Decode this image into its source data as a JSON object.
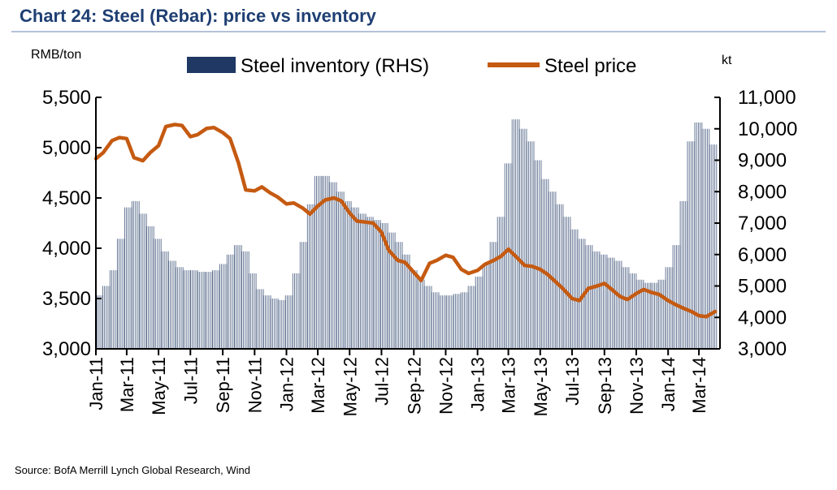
{
  "colors": {
    "title": "#1f3f73",
    "inventory_bars": "#1f3864",
    "price_line": "#c55a11",
    "axis": "#000000"
  },
  "chart_data": {
    "type": "bar+line",
    "title": "Chart 24: Steel (Rebar): price vs inventory",
    "ylabel_left": "RMB/ton",
    "ylabel_right": "kt",
    "ylim_left": [
      3000,
      5500
    ],
    "ylim_right": [
      3000,
      11000
    ],
    "yticks_left": [
      "3,000",
      "3,500",
      "4,000",
      "4,500",
      "5,000",
      "5,500"
    ],
    "yticks_right": [
      "3,000",
      "4,000",
      "5,000",
      "6,000",
      "7,000",
      "8,000",
      "9,000",
      "10,000",
      "11,000"
    ],
    "x_tick_labels": [
      "Jan-11",
      "Mar-11",
      "May-11",
      "Jul-11",
      "Sep-11",
      "Nov-11",
      "Jan-12",
      "Mar-12",
      "May-12",
      "Jul-12",
      "Sep-12",
      "Nov-12",
      "Jan-13",
      "Mar-13",
      "May-13",
      "Jul-13",
      "Sep-13",
      "Nov-13",
      "Jan-14",
      "Mar-14"
    ],
    "x_start": "Jan-11",
    "x_end": "Apr-14",
    "legend_position": "top-center",
    "grid": false,
    "series": [
      {
        "name": "Steel inventory (RHS)",
        "type": "bar",
        "axis": "right",
        "points": [
          [
            "2011-01-07",
            4700
          ],
          [
            "2011-01-21",
            5000
          ],
          [
            "2011-02-04",
            5500
          ],
          [
            "2011-02-18",
            6500
          ],
          [
            "2011-03-04",
            7500
          ],
          [
            "2011-03-18",
            7700
          ],
          [
            "2011-04-01",
            7300
          ],
          [
            "2011-04-15",
            6900
          ],
          [
            "2011-04-29",
            6500
          ],
          [
            "2011-05-13",
            6100
          ],
          [
            "2011-05-27",
            5800
          ],
          [
            "2011-06-10",
            5600
          ],
          [
            "2011-06-24",
            5500
          ],
          [
            "2011-07-08",
            5500
          ],
          [
            "2011-07-22",
            5450
          ],
          [
            "2011-08-05",
            5450
          ],
          [
            "2011-08-19",
            5500
          ],
          [
            "2011-09-02",
            5700
          ],
          [
            "2011-09-16",
            6000
          ],
          [
            "2011-09-30",
            6300
          ],
          [
            "2011-10-14",
            6100
          ],
          [
            "2011-10-28",
            5400
          ],
          [
            "2011-11-11",
            4900
          ],
          [
            "2011-11-25",
            4700
          ],
          [
            "2011-12-09",
            4600
          ],
          [
            "2011-12-23",
            4550
          ],
          [
            "2012-01-06",
            4700
          ],
          [
            "2012-01-20",
            5400
          ],
          [
            "2012-02-03",
            6400
          ],
          [
            "2012-02-17",
            7600
          ],
          [
            "2012-03-02",
            8500
          ],
          [
            "2012-03-16",
            8500
          ],
          [
            "2012-03-30",
            8300
          ],
          [
            "2012-04-13",
            8000
          ],
          [
            "2012-04-27",
            7700
          ],
          [
            "2012-05-11",
            7500
          ],
          [
            "2012-05-25",
            7300
          ],
          [
            "2012-06-08",
            7200
          ],
          [
            "2012-06-22",
            7100
          ],
          [
            "2012-07-06",
            7000
          ],
          [
            "2012-07-20",
            6700
          ],
          [
            "2012-08-03",
            6400
          ],
          [
            "2012-08-17",
            6000
          ],
          [
            "2012-08-31",
            5500
          ],
          [
            "2012-09-14",
            5200
          ],
          [
            "2012-09-28",
            5000
          ],
          [
            "2012-10-12",
            4800
          ],
          [
            "2012-10-26",
            4700
          ],
          [
            "2012-11-09",
            4700
          ],
          [
            "2012-11-23",
            4750
          ],
          [
            "2012-12-07",
            4800
          ],
          [
            "2012-12-21",
            5000
          ],
          [
            "2013-01-04",
            5300
          ],
          [
            "2013-01-18",
            5700
          ],
          [
            "2013-02-01",
            6400
          ],
          [
            "2013-02-15",
            7200
          ],
          [
            "2013-03-01",
            8900
          ],
          [
            "2013-03-15",
            10300
          ],
          [
            "2013-03-29",
            10000
          ],
          [
            "2013-04-12",
            9600
          ],
          [
            "2013-04-26",
            9000
          ],
          [
            "2013-05-10",
            8400
          ],
          [
            "2013-05-24",
            8000
          ],
          [
            "2013-06-07",
            7600
          ],
          [
            "2013-06-21",
            7200
          ],
          [
            "2013-07-05",
            6800
          ],
          [
            "2013-07-19",
            6500
          ],
          [
            "2013-08-02",
            6300
          ],
          [
            "2013-08-16",
            6100
          ],
          [
            "2013-08-30",
            6000
          ],
          [
            "2013-09-13",
            5900
          ],
          [
            "2013-09-27",
            5800
          ],
          [
            "2013-10-11",
            5600
          ],
          [
            "2013-10-25",
            5400
          ],
          [
            "2013-11-08",
            5200
          ],
          [
            "2013-11-22",
            5100
          ],
          [
            "2013-12-06",
            5100
          ],
          [
            "2013-12-20",
            5200
          ],
          [
            "2014-01-03",
            5600
          ],
          [
            "2014-01-17",
            6300
          ],
          [
            "2014-01-31",
            7700
          ],
          [
            "2014-02-14",
            9600
          ],
          [
            "2014-02-28",
            10200
          ],
          [
            "2014-03-14",
            10000
          ],
          [
            "2014-03-28",
            9500
          ]
        ]
      },
      {
        "name": "Steel price",
        "type": "line",
        "axis": "left",
        "points": [
          [
            "2011-01-01",
            4890
          ],
          [
            "2011-01-15",
            4950
          ],
          [
            "2011-02-01",
            5070
          ],
          [
            "2011-02-15",
            5100
          ],
          [
            "2011-03-01",
            5090
          ],
          [
            "2011-03-15",
            4900
          ],
          [
            "2011-04-01",
            4870
          ],
          [
            "2011-04-15",
            4950
          ],
          [
            "2011-05-01",
            5020
          ],
          [
            "2011-05-15",
            5210
          ],
          [
            "2011-06-01",
            5230
          ],
          [
            "2011-06-15",
            5220
          ],
          [
            "2011-07-01",
            5110
          ],
          [
            "2011-07-15",
            5130
          ],
          [
            "2011-08-01",
            5190
          ],
          [
            "2011-08-15",
            5200
          ],
          [
            "2011-09-01",
            5150
          ],
          [
            "2011-09-15",
            5090
          ],
          [
            "2011-10-01",
            4850
          ],
          [
            "2011-10-15",
            4580
          ],
          [
            "2011-11-01",
            4570
          ],
          [
            "2011-11-15",
            4610
          ],
          [
            "2011-12-01",
            4550
          ],
          [
            "2011-12-15",
            4510
          ],
          [
            "2012-01-01",
            4440
          ],
          [
            "2012-01-15",
            4450
          ],
          [
            "2012-02-01",
            4400
          ],
          [
            "2012-02-15",
            4340
          ],
          [
            "2012-03-01",
            4420
          ],
          [
            "2012-03-15",
            4480
          ],
          [
            "2012-04-01",
            4500
          ],
          [
            "2012-04-15",
            4470
          ],
          [
            "2012-05-01",
            4350
          ],
          [
            "2012-05-15",
            4270
          ],
          [
            "2012-06-01",
            4260
          ],
          [
            "2012-06-15",
            4250
          ],
          [
            "2012-07-01",
            4160
          ],
          [
            "2012-07-15",
            3980
          ],
          [
            "2012-08-01",
            3880
          ],
          [
            "2012-08-15",
            3860
          ],
          [
            "2012-09-01",
            3760
          ],
          [
            "2012-09-15",
            3680
          ],
          [
            "2012-10-01",
            3850
          ],
          [
            "2012-10-15",
            3880
          ],
          [
            "2012-11-01",
            3930
          ],
          [
            "2012-11-15",
            3910
          ],
          [
            "2012-12-01",
            3790
          ],
          [
            "2012-12-15",
            3750
          ],
          [
            "2013-01-01",
            3780
          ],
          [
            "2013-01-15",
            3840
          ],
          [
            "2013-02-01",
            3880
          ],
          [
            "2013-02-15",
            3920
          ],
          [
            "2013-03-01",
            3990
          ],
          [
            "2013-03-15",
            3920
          ],
          [
            "2013-04-01",
            3830
          ],
          [
            "2013-04-15",
            3820
          ],
          [
            "2013-05-01",
            3790
          ],
          [
            "2013-05-15",
            3740
          ],
          [
            "2013-06-01",
            3660
          ],
          [
            "2013-06-15",
            3590
          ],
          [
            "2013-07-01",
            3500
          ],
          [
            "2013-07-15",
            3480
          ],
          [
            "2013-08-01",
            3600
          ],
          [
            "2013-08-15",
            3620
          ],
          [
            "2013-09-01",
            3650
          ],
          [
            "2013-09-15",
            3590
          ],
          [
            "2013-10-01",
            3520
          ],
          [
            "2013-10-15",
            3490
          ],
          [
            "2013-11-01",
            3550
          ],
          [
            "2013-11-15",
            3590
          ],
          [
            "2013-12-01",
            3560
          ],
          [
            "2013-12-15",
            3540
          ],
          [
            "2014-01-01",
            3480
          ],
          [
            "2014-01-15",
            3440
          ],
          [
            "2014-02-01",
            3400
          ],
          [
            "2014-02-15",
            3370
          ],
          [
            "2014-03-01",
            3330
          ],
          [
            "2014-03-15",
            3320
          ],
          [
            "2014-04-01",
            3370
          ]
        ]
      }
    ],
    "source": "Source: BofA Merrill Lynch Global Research, Wind"
  }
}
